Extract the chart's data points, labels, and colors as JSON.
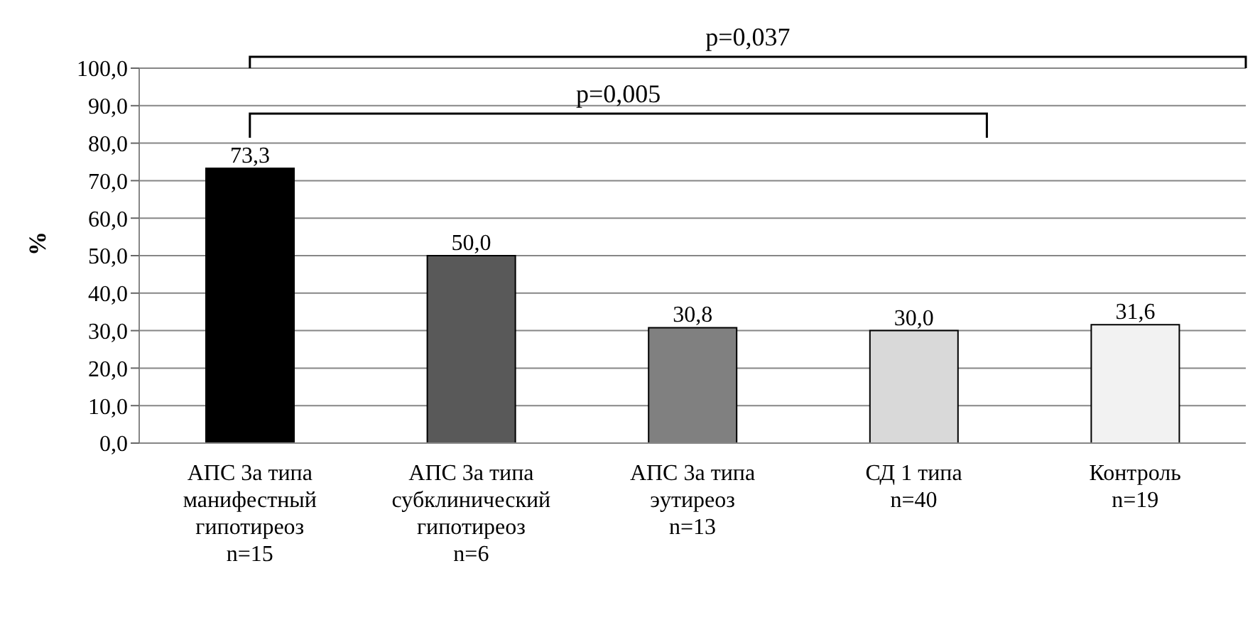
{
  "chart_data": {
    "type": "bar",
    "ylabel": "%",
    "categories": [
      "АПС 3а типа\nманифестный\nгипотиреоз\nn=15",
      "АПС 3а типа\nсубклинический\nгипотиреоз\nn=6",
      "АПС 3а типа\nэутиреоз\nn=13",
      "СД 1 типа\nn=40",
      "Контроль\nn=19"
    ],
    "values": [
      73.3,
      50.0,
      30.8,
      30.0,
      31.6
    ],
    "value_labels": [
      "73,3",
      "50,0",
      "30,8",
      "30,0",
      "31,6"
    ],
    "colors": [
      "#000000",
      "#595959",
      "#808080",
      "#d9d9d9",
      "#f2f2f2"
    ],
    "ylim": [
      0,
      100
    ],
    "yticks": [
      {
        "value": 0,
        "label": "0,0"
      },
      {
        "value": 10,
        "label": "10,0"
      },
      {
        "value": 20,
        "label": "20,0"
      },
      {
        "value": 30,
        "label": "30,0"
      },
      {
        "value": 40,
        "label": "40,0"
      },
      {
        "value": 50,
        "label": "50,0"
      },
      {
        "value": 60,
        "label": "60,0"
      },
      {
        "value": 70,
        "label": "70,0"
      },
      {
        "value": 80,
        "label": "80,0"
      },
      {
        "value": 90,
        "label": "90,0"
      },
      {
        "value": 100,
        "label": "100,0"
      }
    ],
    "grid": "y",
    "legend": false,
    "annotations": [
      "p=0,037",
      "p=0,005"
    ]
  }
}
